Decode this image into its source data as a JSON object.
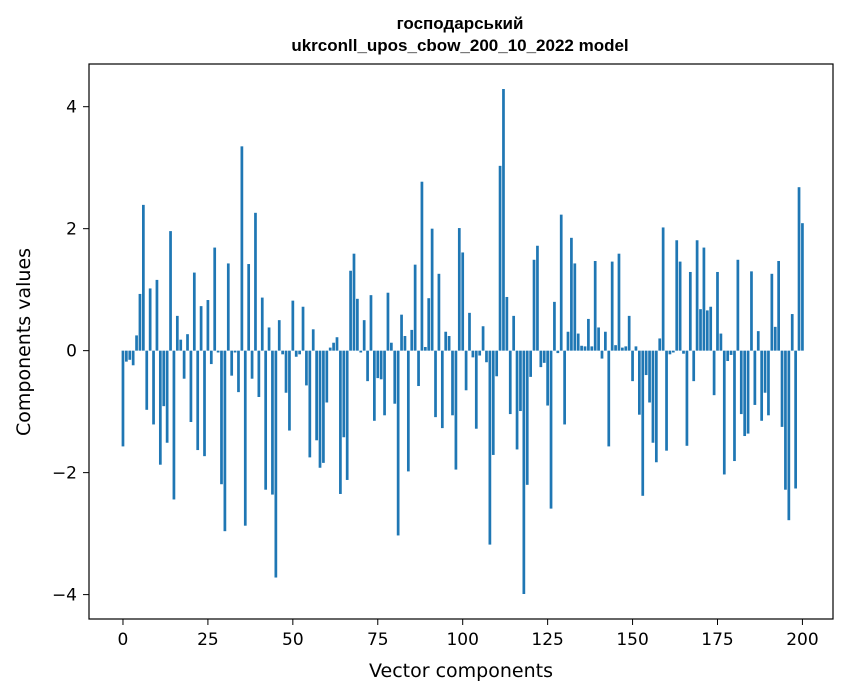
{
  "chart_data": {
    "type": "bar",
    "title_line1": "господарський",
    "title_line2": "ukrconll_upos_cbow_200_10_2022 model",
    "xlabel": "Vector components",
    "ylabel": "Components values",
    "xlim": [
      -10,
      209
    ],
    "ylim": [
      -4.4,
      4.7
    ],
    "xticks": [
      0,
      25,
      50,
      75,
      100,
      125,
      150,
      175,
      200
    ],
    "xtick_labels": [
      "0",
      "25",
      "50",
      "75",
      "100",
      "125",
      "150",
      "175",
      "200"
    ],
    "yticks": [
      -4,
      -2,
      0,
      2,
      4
    ],
    "ytick_labels": [
      "−4",
      "−2",
      "0",
      "2",
      "4"
    ],
    "bar_color": "#1f77b4",
    "grid": false,
    "values": [
      -1.57,
      -0.18,
      -0.15,
      -0.24,
      0.25,
      0.93,
      2.39,
      -0.97,
      1.02,
      -1.21,
      1.16,
      -1.87,
      -0.91,
      -1.51,
      1.96,
      -2.44,
      0.57,
      0.18,
      -0.46,
      0.27,
      -1.17,
      1.28,
      -1.63,
      0.73,
      -1.73,
      0.83,
      -0.22,
      1.69,
      -0.03,
      -2.19,
      -2.96,
      1.43,
      -0.41,
      -0.03,
      -0.68,
      3.35,
      -2.87,
      1.42,
      -0.46,
      2.26,
      -0.76,
      0.87,
      -2.28,
      0.38,
      -2.36,
      -3.72,
      0.5,
      -0.06,
      -0.69,
      -1.31,
      0.82,
      -0.1,
      -0.06,
      0.72,
      -0.57,
      -1.75,
      0.35,
      -1.47,
      -1.92,
      -1.84,
      -0.85,
      0.05,
      0.13,
      0.22,
      -2.35,
      -1.42,
      -2.12,
      1.31,
      1.59,
      0.85,
      -0.03,
      0.5,
      -0.5,
      0.91,
      -1.15,
      -0.45,
      -0.47,
      -1.06,
      0.95,
      0.13,
      -0.87,
      -3.03,
      0.59,
      0.24,
      -1.98,
      0.34,
      1.41,
      -0.58,
      2.77,
      0.06,
      0.86,
      2.0,
      -1.09,
      1.26,
      -1.27,
      0.31,
      0.24,
      -1.06,
      -1.95,
      2.01,
      1.61,
      -0.65,
      0.62,
      -0.11,
      -1.28,
      -0.08,
      0.4,
      -0.19,
      -3.18,
      -1.71,
      -0.42,
      3.03,
      4.29,
      0.88,
      -1.04,
      0.57,
      -1.62,
      -0.99,
      -3.99,
      -2.2,
      -0.43,
      1.49,
      1.72,
      -0.27,
      -0.2,
      -0.9,
      -2.59,
      0.8,
      -0.04,
      2.23,
      -1.21,
      0.31,
      1.85,
      1.43,
      0.28,
      0.08,
      0.07,
      0.52,
      0.07,
      1.47,
      0.38,
      -0.13,
      0.31,
      -1.57,
      1.46,
      0.09,
      1.59,
      0.05,
      0.07,
      0.57,
      -0.5,
      0.07,
      -1.05,
      -2.38,
      -0.4,
      -0.85,
      -1.51,
      -1.83,
      0.2,
      2.02,
      -1.64,
      -0.06,
      -0.03,
      1.81,
      1.46,
      -0.05,
      -1.56,
      1.29,
      -0.5,
      1.81,
      0.68,
      1.69,
      0.66,
      0.72,
      -0.73,
      1.29,
      0.28,
      -2.03,
      -0.17,
      -0.07,
      -1.81,
      1.49,
      -1.04,
      -1.4,
      -1.36,
      1.3,
      -0.89,
      0.32,
      -1.15,
      -0.69,
      -1.06,
      1.26,
      0.39,
      1.47,
      -1.25,
      -2.28,
      -2.78,
      0.6,
      -2.26,
      2.68,
      2.09
    ]
  }
}
